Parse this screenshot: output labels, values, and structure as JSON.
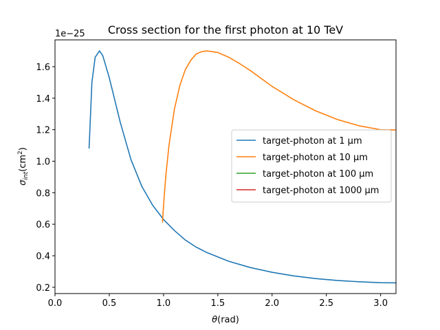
{
  "chart_data": {
    "type": "line",
    "title": "Cross section for the first photon at 10 TeV",
    "xlabel": "θ(rad)",
    "ylabel": "σ_int(cm²)",
    "y_offset_text": "1e−25",
    "y_scale_factor": 1e-25,
    "xlim": [
      0.0,
      3.14159
    ],
    "ylim": [
      0.16,
      1.77
    ],
    "x_ticks": [
      0.0,
      0.5,
      1.0,
      1.5,
      2.0,
      2.5,
      3.0
    ],
    "x_tick_labels": [
      "0.0",
      "0.5",
      "1.0",
      "1.5",
      "2.0",
      "2.5",
      "3.0"
    ],
    "y_ticks": [
      0.2,
      0.4,
      0.6,
      0.8,
      1.0,
      1.2,
      1.4,
      1.6
    ],
    "y_tick_labels": [
      "0.2",
      "0.4",
      "0.6",
      "0.8",
      "1.0",
      "1.2",
      "1.4",
      "1.6"
    ],
    "grid": false,
    "legend_position": "center-right",
    "series": [
      {
        "name": "target-photon at 1 μm",
        "color": "#1f77b4",
        "x": [
          0.314,
          0.34,
          0.37,
          0.41,
          0.44,
          0.47,
          0.5,
          0.55,
          0.6,
          0.7,
          0.8,
          0.9,
          1.0,
          1.1,
          1.2,
          1.3,
          1.4,
          1.6,
          1.8,
          2.0,
          2.2,
          2.4,
          2.6,
          2.8,
          3.0,
          3.14
        ],
        "y": [
          1.08,
          1.5,
          1.66,
          1.7,
          1.67,
          1.6,
          1.53,
          1.39,
          1.25,
          1.01,
          0.84,
          0.72,
          0.63,
          0.56,
          0.5,
          0.455,
          0.42,
          0.365,
          0.325,
          0.295,
          0.272,
          0.255,
          0.243,
          0.235,
          0.229,
          0.228
        ]
      },
      {
        "name": "target-photon at 10 μm",
        "color": "#ff7f0e",
        "x": [
          0.99,
          1.0,
          1.02,
          1.05,
          1.1,
          1.15,
          1.2,
          1.25,
          1.3,
          1.35,
          1.4,
          1.5,
          1.6,
          1.7,
          1.8,
          1.9,
          2.0,
          2.2,
          2.4,
          2.6,
          2.8,
          3.0,
          3.14
        ],
        "y": [
          0.61,
          0.72,
          0.9,
          1.1,
          1.33,
          1.48,
          1.58,
          1.64,
          1.68,
          1.695,
          1.7,
          1.69,
          1.66,
          1.62,
          1.575,
          1.525,
          1.475,
          1.39,
          1.32,
          1.265,
          1.225,
          1.2,
          1.198
        ]
      },
      {
        "name": "target-photon at 100 μm",
        "color": "#2ca02c",
        "x": [],
        "y": []
      },
      {
        "name": "target-photon at 1000 μm",
        "color": "#d62728",
        "x": [],
        "y": []
      }
    ]
  }
}
